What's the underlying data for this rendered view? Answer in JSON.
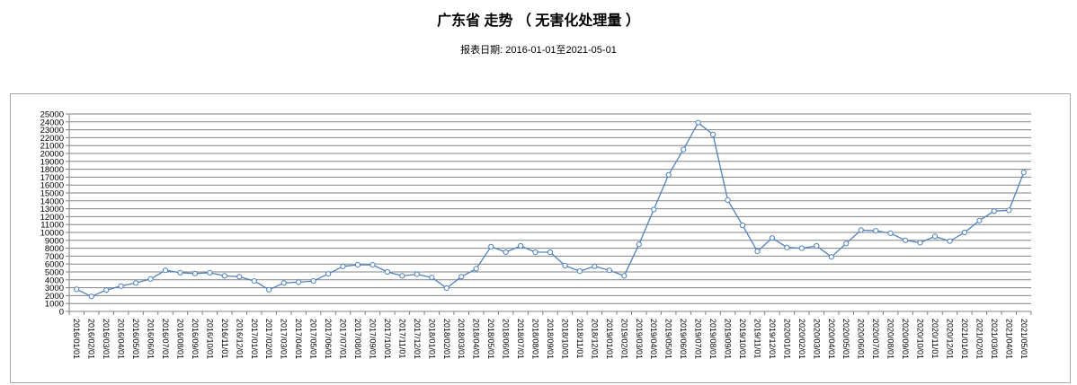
{
  "header": {
    "title": "广东省 走势 （ 无害化处理量 ）",
    "subtitle": "报表日期: 2016-01-01至2021-05-01"
  },
  "chart_data": {
    "type": "line",
    "title": "广东省 走势 （ 无害化处理量 ）",
    "subtitle": "报表日期: 2016-01-01至2021-05-01",
    "series_name": "无害化处理量",
    "xlabel": "",
    "ylabel": "",
    "ylim": [
      0,
      25000
    ],
    "y_tick_step": 1000,
    "grid": true,
    "legend_position": "none",
    "marker": "circle-hollow",
    "y_ticks": [
      0,
      1000,
      2000,
      3000,
      4000,
      5000,
      6000,
      7000,
      8000,
      9000,
      10000,
      11000,
      12000,
      13000,
      14000,
      15000,
      16000,
      17000,
      18000,
      19000,
      20000,
      21000,
      22000,
      23000,
      24000,
      25000
    ],
    "categories": [
      "2016/01/01",
      "2016/02/01",
      "2016/03/01",
      "2016/04/01",
      "2016/05/01",
      "2016/06/01",
      "2016/07/01",
      "2016/08/01",
      "2016/09/01",
      "2016/10/01",
      "2016/11/01",
      "2016/12/01",
      "2017/01/01",
      "2017/02/01",
      "2017/03/01",
      "2017/04/01",
      "2017/05/01",
      "2017/06/01",
      "2017/07/01",
      "2017/08/01",
      "2017/09/01",
      "2017/10/01",
      "2017/11/01",
      "2017/12/01",
      "2018/01/01",
      "2018/02/01",
      "2018/03/01",
      "2018/04/01",
      "2018/05/01",
      "2018/06/01",
      "2018/07/01",
      "2018/08/01",
      "2018/09/01",
      "2018/10/01",
      "2018/11/01",
      "2018/12/01",
      "2019/01/01",
      "2019/02/01",
      "2019/03/01",
      "2019/04/01",
      "2019/05/01",
      "2019/06/01",
      "2019/07/01",
      "2019/08/01",
      "2019/09/01",
      "2019/10/01",
      "2019/11/01",
      "2019/12/01",
      "2020/01/01",
      "2020/02/01",
      "2020/03/01",
      "2020/04/01",
      "2020/05/01",
      "2020/06/01",
      "2020/07/01",
      "2020/08/01",
      "2020/09/01",
      "2020/10/01",
      "2020/11/01",
      "2020/12/01",
      "2021/01/01",
      "2021/02/01",
      "2021/03/01",
      "2021/04/01",
      "2021/05/01"
    ],
    "values": [
      2800,
      1900,
      2700,
      3200,
      3600,
      4100,
      5200,
      4900,
      4800,
      4900,
      4500,
      4400,
      3850,
      2750,
      3600,
      3700,
      3850,
      4750,
      5700,
      5900,
      5900,
      5000,
      4500,
      4700,
      4300,
      2950,
      4400,
      5400,
      8200,
      7500,
      8300,
      7500,
      7500,
      5800,
      5100,
      5700,
      5200,
      4500,
      8500,
      12900,
      17300,
      20500,
      23900,
      22400,
      14100,
      10900,
      7600,
      9300,
      8100,
      8000,
      8300,
      6900,
      8600,
      10300,
      10200,
      9900,
      9000,
      8700,
      9500,
      8900,
      10000,
      11500,
      12700,
      12800,
      17600
    ],
    "colors": {
      "line": "#4f81bd",
      "marker_fill": "#ffffff",
      "grid": "#808080",
      "axis": "#808080",
      "box_border": "#a6a6a6",
      "text": "#000000",
      "background": "#ffffff"
    }
  }
}
